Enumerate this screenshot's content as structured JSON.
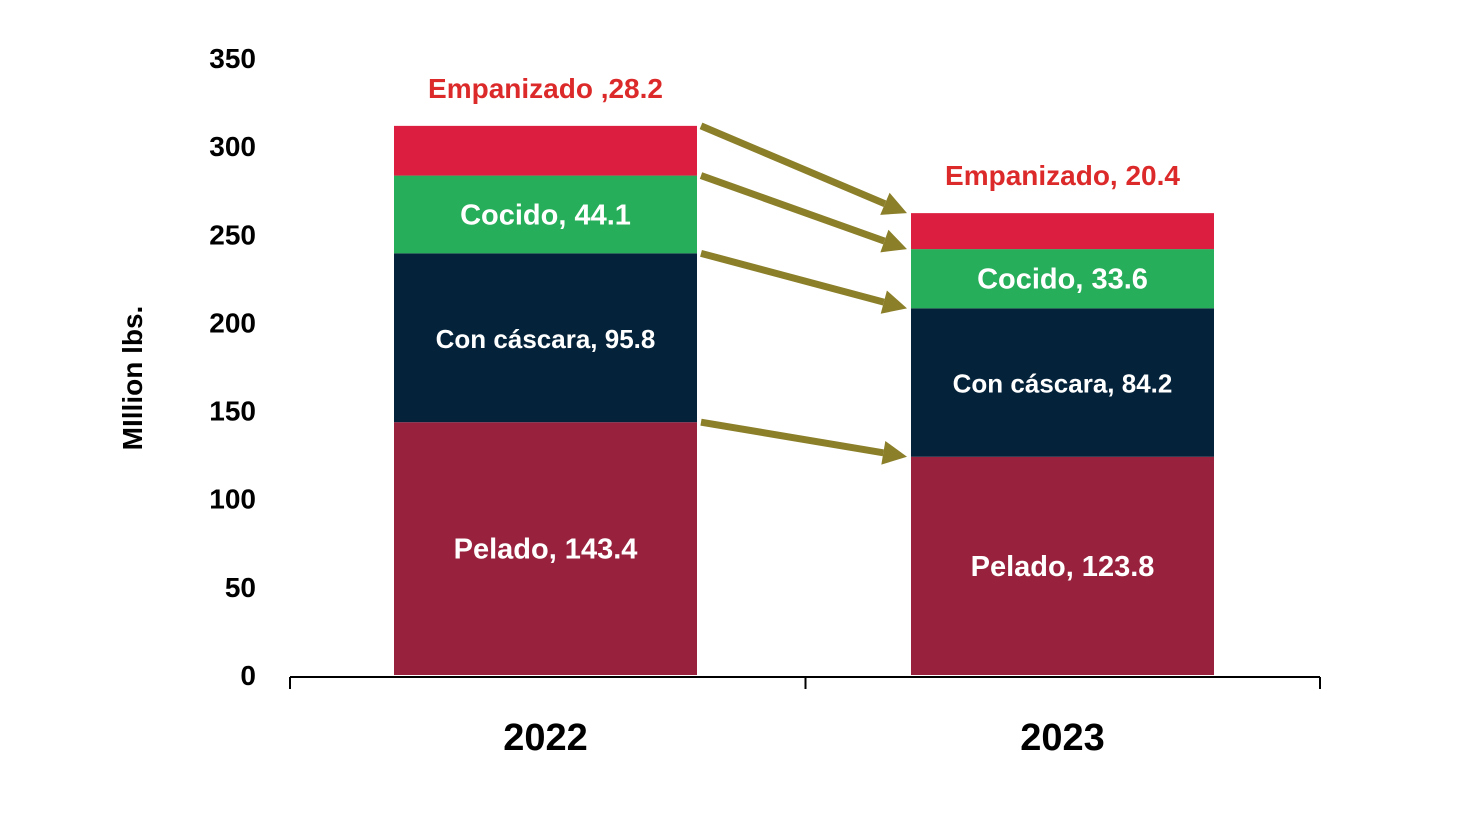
{
  "chart_data": {
    "type": "bar",
    "stacked": true,
    "title": "",
    "xlabel": "",
    "ylabel": "MIllion lbs.",
    "ylim": [
      0,
      350
    ],
    "yticks": [
      "0",
      "50",
      "100",
      "150",
      "200",
      "250",
      "300",
      "350"
    ],
    "categories": [
      "2022",
      "2023"
    ],
    "series": [
      {
        "name": "Pelado",
        "color": "#98223d",
        "label_color": "#ffffff",
        "values": [
          143.4,
          123.8
        ],
        "labels": [
          "Pelado, 143.4",
          "Pelado, 123.8"
        ]
      },
      {
        "name": "Con cáscara",
        "color": "#04223a",
        "label_color": "#ffffff",
        "values": [
          95.8,
          84.2
        ],
        "labels": [
          "Con cáscara, 95.8",
          "Con cáscara, 84.2"
        ]
      },
      {
        "name": "Cocido",
        "color": "#27ae5a",
        "label_color": "#ffffff",
        "values": [
          44.1,
          33.6
        ],
        "labels": [
          "Cocido, 44.1",
          "Cocido, 33.6"
        ]
      },
      {
        "name": "Empanizado",
        "color": "#dc1f40",
        "label_color": "#dc2a2a",
        "values": [
          28.2,
          20.4
        ],
        "labels": [
          "Empanizado ,28.2",
          "Empanizado, 20.4"
        ]
      }
    ],
    "arrow_color": "#8b7f2a",
    "grid": false,
    "legend": "none"
  }
}
